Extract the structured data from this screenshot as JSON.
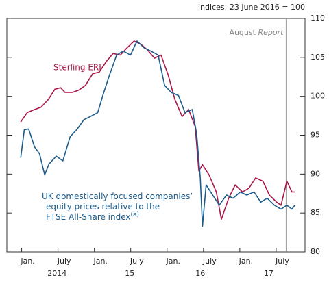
{
  "chart_data": {
    "type": "line",
    "subtitle": "Indices:  23 June 2016 = 100",
    "xlim": [
      2013.74,
      2017.84
    ],
    "ylim": [
      80,
      110
    ],
    "yticks": [
      80,
      85,
      90,
      95,
      100,
      105,
      110
    ],
    "xticks": [
      {
        "value": 2014.0,
        "label": "Jan."
      },
      {
        "value": 2014.5,
        "label": "July"
      },
      {
        "value": 2015.0,
        "label": "Jan."
      },
      {
        "value": 2015.5,
        "label": "July"
      },
      {
        "value": 2016.0,
        "label": "Jan."
      },
      {
        "value": 2016.5,
        "label": "July"
      },
      {
        "value": 2017.0,
        "label": "Jan."
      },
      {
        "value": 2017.5,
        "label": "July"
      }
    ],
    "year_labels": [
      {
        "value": 2014.43,
        "label": "2014"
      },
      {
        "value": 2015.43,
        "label": "15"
      },
      {
        "value": 2016.4,
        "label": "16"
      },
      {
        "value": 2017.34,
        "label": "17"
      }
    ],
    "annotation": {
      "value": 2017.58,
      "text": "August",
      "emph": "Report"
    },
    "series": [
      {
        "name": "Sterling ERI",
        "color": "#a8174a",
        "x": [
          2013.93,
          2014.02,
          2014.12,
          2014.21,
          2014.31,
          2014.4,
          2014.48,
          2014.54,
          2014.64,
          2014.73,
          2014.82,
          2014.92,
          2015.01,
          2015.11,
          2015.2,
          2015.3,
          2015.39,
          2015.49,
          2015.58,
          2015.67,
          2015.77,
          2015.86,
          2015.96,
          2016.05,
          2016.15,
          2016.24,
          2016.33,
          2016.38,
          2016.43,
          2016.52,
          2016.62,
          2016.69,
          2016.79,
          2016.88,
          2016.98,
          2017.07,
          2017.16,
          2017.26,
          2017.35,
          2017.45,
          2017.51,
          2017.59,
          2017.66,
          2017.7
        ],
        "values": [
          96.7,
          97.9,
          98.3,
          98.6,
          99.6,
          100.9,
          101.1,
          100.5,
          100.5,
          100.8,
          101.4,
          102.9,
          103.1,
          104.5,
          105.5,
          105.3,
          106.2,
          107.1,
          106.7,
          106.0,
          104.9,
          105.3,
          102.7,
          99.6,
          97.4,
          98.3,
          96.1,
          90.4,
          91.2,
          89.9,
          87.7,
          84.2,
          86.9,
          88.6,
          87.7,
          88.2,
          89.5,
          89.1,
          87.3,
          86.4,
          86.0,
          89.1,
          87.7,
          87.7
        ]
      },
      {
        "name": [
          "UK domestically focused companies’",
          "equity prices relative to the",
          "FTSE All-Share index"
        ],
        "note": "(a)",
        "color": "#1b5c8c",
        "x": [
          2013.93,
          2013.98,
          2014.04,
          2014.12,
          2014.19,
          2014.26,
          2014.32,
          2014.42,
          2014.51,
          2014.61,
          2014.7,
          2014.8,
          2014.89,
          2014.99,
          2015.06,
          2015.15,
          2015.25,
          2015.34,
          2015.44,
          2015.53,
          2015.63,
          2015.72,
          2015.82,
          2015.91,
          2016.0,
          2016.1,
          2016.19,
          2016.29,
          2016.35,
          2016.4,
          2016.43,
          2016.48,
          2016.57,
          2016.66,
          2016.76,
          2016.85,
          2016.95,
          2017.04,
          2017.14,
          2017.23,
          2017.32,
          2017.42,
          2017.51,
          2017.59,
          2017.66,
          2017.7
        ],
        "values": [
          92.1,
          95.7,
          95.8,
          93.5,
          92.6,
          89.9,
          91.3,
          92.3,
          91.7,
          94.8,
          95.7,
          97.0,
          97.4,
          97.9,
          100.1,
          102.7,
          105.3,
          105.8,
          105.3,
          107.1,
          106.2,
          105.8,
          105.3,
          101.4,
          100.5,
          100.1,
          97.9,
          98.3,
          95.2,
          89.5,
          83.3,
          88.6,
          87.3,
          86.0,
          87.3,
          86.9,
          87.7,
          87.3,
          87.7,
          86.4,
          86.9,
          86.0,
          85.5,
          86.0,
          85.5,
          86.0
        ]
      }
    ]
  }
}
